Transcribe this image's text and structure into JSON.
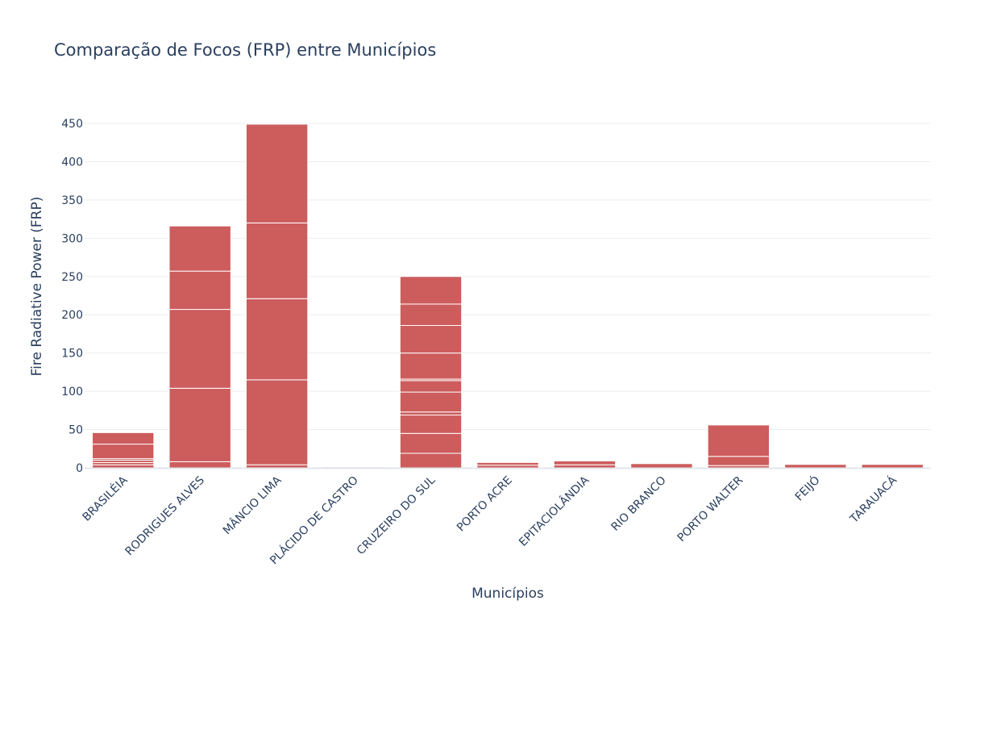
{
  "chart_data": {
    "type": "bar",
    "title": "Comparação de Focos (FRP) entre Municípios",
    "xlabel": "Municípios",
    "ylabel": "Fire Radiative Power (FRP)",
    "ylim": [
      0,
      460
    ],
    "yticks": [
      0,
      50,
      100,
      150,
      200,
      250,
      300,
      350,
      400,
      450
    ],
    "grid": true,
    "barmode": "stack",
    "color": "#cd5c5c",
    "categories": [
      "BRASILÉIA",
      "RODRIGUES ALVES",
      "MÂNCIO LIMA",
      "PLÁCIDO DE CASTRO",
      "CRUZEIRO DO SUL",
      "PORTO ACRE",
      "EPITACIOLÂNDIA",
      "RIO BRANCO",
      "PORTO WALTER",
      "FEIJÓ",
      "TARAUACÁ"
    ],
    "stacks": [
      [
        4,
        3,
        3,
        2,
        19,
        15
      ],
      [
        8,
        96,
        103,
        50,
        59
      ],
      [
        4,
        111,
        106,
        99,
        129
      ],
      [
        1.3
      ],
      [
        19,
        26,
        24,
        4,
        26,
        15,
        2,
        34,
        36,
        28,
        36
      ],
      [
        3.5,
        3.5
      ],
      [
        4,
        5
      ],
      [
        5.5
      ],
      [
        3,
        12,
        41
      ],
      [
        4.5
      ],
      [
        4.5
      ]
    ],
    "totals": [
      46,
      316,
      449,
      1.3,
      245,
      7,
      9,
      5.5,
      56,
      4.5,
      4.5
    ]
  }
}
